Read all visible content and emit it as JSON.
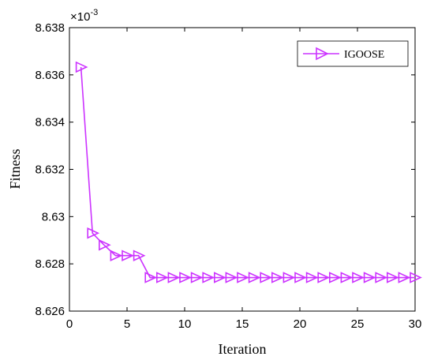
{
  "chart_data": {
    "type": "line",
    "title": "",
    "xlabel": "Iteration",
    "ylabel": "Fitness",
    "y_multiplier_base": "×10",
    "y_multiplier_exp": "-3",
    "xlim": [
      0,
      30
    ],
    "ylim": [
      8.626,
      8.638
    ],
    "x_ticks": [
      0,
      5,
      10,
      15,
      20,
      25,
      30
    ],
    "x_tick_labels": [
      "0",
      "5",
      "10",
      "15",
      "20",
      "25",
      "30"
    ],
    "y_ticks": [
      8.626,
      8.628,
      8.63,
      8.632,
      8.634,
      8.636,
      8.638
    ],
    "y_tick_labels": [
      "8.626",
      "8.628",
      "8.63",
      "8.632",
      "8.634",
      "8.636",
      "8.638"
    ],
    "grid": false,
    "legend_position": "top-right",
    "series": [
      {
        "name": "IGOOSE",
        "color": "#cc33ff",
        "marker": "triangle-right",
        "x": [
          1,
          2,
          3,
          4,
          5,
          6,
          7,
          8,
          9,
          10,
          11,
          12,
          13,
          14,
          15,
          16,
          17,
          18,
          19,
          20,
          21,
          22,
          23,
          24,
          25,
          26,
          27,
          28,
          29,
          30
        ],
        "y": [
          8.63633,
          8.6293,
          8.6288,
          8.62835,
          8.62835,
          8.62835,
          8.62742,
          8.62742,
          8.62742,
          8.62742,
          8.62742,
          8.62742,
          8.62742,
          8.62742,
          8.62742,
          8.62742,
          8.62742,
          8.62742,
          8.62742,
          8.62742,
          8.62742,
          8.62742,
          8.62742,
          8.62742,
          8.62742,
          8.62742,
          8.62742,
          8.62742,
          8.62742,
          8.62742
        ]
      }
    ]
  }
}
